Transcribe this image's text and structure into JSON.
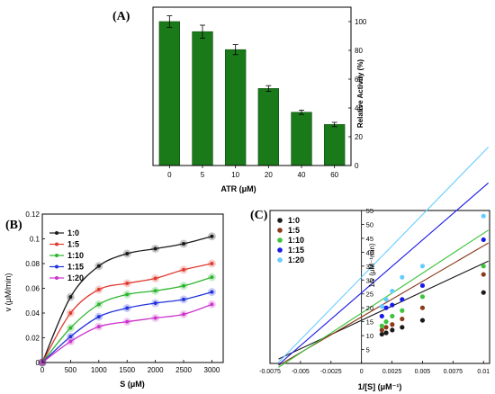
{
  "chart_data": [
    {
      "panel": "(A)",
      "type": "bar",
      "categories": [
        "0",
        "5",
        "10",
        "20",
        "40",
        "60"
      ],
      "values": [
        100,
        93,
        80.5,
        53.5,
        37,
        28.5
      ],
      "errors": [
        4,
        4.5,
        3.5,
        2,
        1.5,
        1.5
      ],
      "xlabel": "ATR (μM)",
      "ylabel": "Relative Activity (%)",
      "ylim": [
        0,
        110
      ],
      "yticks": [
        0,
        20,
        40,
        60,
        80,
        100
      ],
      "bar_color": "#1a7a1a",
      "grid": false
    },
    {
      "panel": "(B)",
      "type": "line",
      "xlabel": "S (μM)",
      "ylabel": "v (μM/min)",
      "xlim": [
        0,
        3200
      ],
      "ylim": [
        0,
        0.12
      ],
      "xticks": [
        0,
        500,
        1000,
        1500,
        2000,
        2500,
        3000
      ],
      "yticks": [
        0,
        0.02,
        0.04,
        0.06,
        0.08,
        0.1,
        0.12
      ],
      "legend_position": "top-left",
      "x": [
        0,
        500,
        1000,
        1500,
        2000,
        2500,
        3000
      ],
      "series": [
        {
          "name": "1:0",
          "color": "#1a1a1a",
          "values": [
            0,
            0.053,
            0.078,
            0.088,
            0.092,
            0.096,
            0.102
          ]
        },
        {
          "name": "1:5",
          "color": "#e03c31",
          "values": [
            0,
            0.04,
            0.059,
            0.064,
            0.068,
            0.075,
            0.08
          ]
        },
        {
          "name": "1:10",
          "color": "#2db52d",
          "values": [
            0,
            0.028,
            0.047,
            0.055,
            0.058,
            0.062,
            0.069
          ]
        },
        {
          "name": "1:15",
          "color": "#2233dd",
          "values": [
            0,
            0.021,
            0.037,
            0.044,
            0.048,
            0.051,
            0.057
          ]
        },
        {
          "name": "1:20",
          "color": "#cc33cc",
          "values": [
            0,
            0.017,
            0.029,
            0.033,
            0.036,
            0.039,
            0.047
          ]
        }
      ]
    },
    {
      "panel": "(C)",
      "type": "scatter",
      "xlabel": "1/[S] (μM⁻¹)",
      "ylabel": "1/v (μM⁻¹min)",
      "xlim": [
        -0.0075,
        0.0105
      ],
      "ylim": [
        0,
        55
      ],
      "xticks": [
        -0.0075,
        -0.005,
        -0.0025,
        0,
        0.0025,
        0.005,
        0.0075,
        0.01
      ],
      "xtick_labels": [
        "-0.0075",
        "-0.005",
        "-0.0025",
        "0",
        "0.0025",
        "0.005",
        "0.0075",
        "0.01"
      ],
      "yticks": [
        0,
        5,
        10,
        15,
        20,
        25,
        30,
        35,
        40,
        45,
        50,
        55
      ],
      "legend_position": "top-left",
      "x": [
        0.00167,
        0.00202,
        0.00252,
        0.00333,
        0.005,
        0.01
      ],
      "series": [
        {
          "name": "1:0",
          "color": "#1a1a1a",
          "values": [
            10.5,
            11,
            12,
            13,
            15.5,
            25.5
          ],
          "fit": {
            "slope": 2050,
            "intercept": 15.5
          }
        },
        {
          "name": "1:5",
          "color": "#8b3a1a",
          "values": [
            12,
            13,
            14,
            16,
            20,
            32
          ],
          "fit": {
            "slope": 2560,
            "intercept": 16.7
          }
        },
        {
          "name": "1:10",
          "color": "#3cc43c",
          "values": [
            13.5,
            15,
            17,
            19,
            24,
            35
          ],
          "fit": {
            "slope": 2870,
            "intercept": 18.1
          }
        },
        {
          "name": "1:15",
          "color": "#1a1ae6",
          "values": [
            17,
            20,
            21,
            23,
            28,
            44.5
          ],
          "fit": {
            "slope": 3800,
            "intercept": 25.4
          }
        },
        {
          "name": "1:20",
          "color": "#66ccff",
          "values": [
            20.5,
            23,
            26,
            31,
            35,
            53
          ],
          "fit": {
            "slope": 4500,
            "intercept": 31.0
          }
        }
      ]
    }
  ]
}
